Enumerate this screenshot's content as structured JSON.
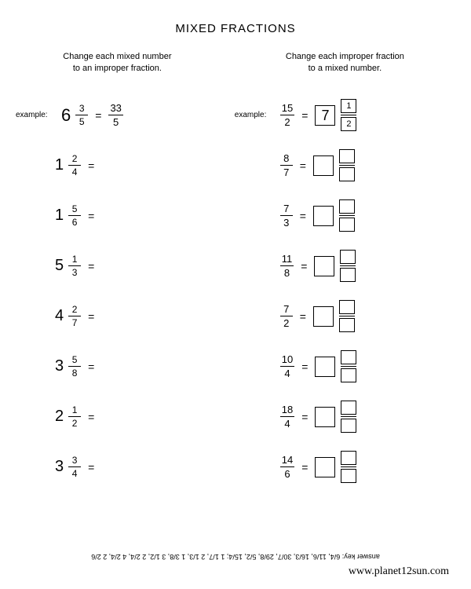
{
  "title": "MIXED FRACTIONS",
  "left": {
    "instruction_line1": "Change each mixed number",
    "instruction_line2": "to an improper fraction.",
    "example_label": "example:",
    "example": {
      "whole": "6",
      "num": "3",
      "den": "5",
      "ans_num": "33",
      "ans_den": "5"
    },
    "problems": [
      {
        "whole": "1",
        "num": "2",
        "den": "4"
      },
      {
        "whole": "1",
        "num": "5",
        "den": "6"
      },
      {
        "whole": "5",
        "num": "1",
        "den": "3"
      },
      {
        "whole": "4",
        "num": "2",
        "den": "7"
      },
      {
        "whole": "3",
        "num": "5",
        "den": "8"
      },
      {
        "whole": "2",
        "num": "1",
        "den": "2"
      },
      {
        "whole": "3",
        "num": "3",
        "den": "4"
      }
    ]
  },
  "right": {
    "instruction_line1": "Change each improper fraction",
    "instruction_line2": "to a mixed number.",
    "example_label": "example:",
    "example": {
      "num": "15",
      "den": "2",
      "ans_whole": "7",
      "ans_num": "1",
      "ans_den": "2"
    },
    "problems": [
      {
        "num": "8",
        "den": "7"
      },
      {
        "num": "7",
        "den": "3"
      },
      {
        "num": "11",
        "den": "8"
      },
      {
        "num": "7",
        "den": "2"
      },
      {
        "num": "10",
        "den": "4"
      },
      {
        "num": "18",
        "den": "4"
      },
      {
        "num": "14",
        "den": "6"
      }
    ]
  },
  "answer_key_label": "answer key:",
  "answer_key": "6/4, 11/6, 16/3, 30/7, 29/8, 5/2, 15/4; 1 1/7, 2 1/3, 1 3/8, 3 1/2, 2 2/4, 4 2/4, 2 2/6",
  "website": "www.planet12sun.com"
}
